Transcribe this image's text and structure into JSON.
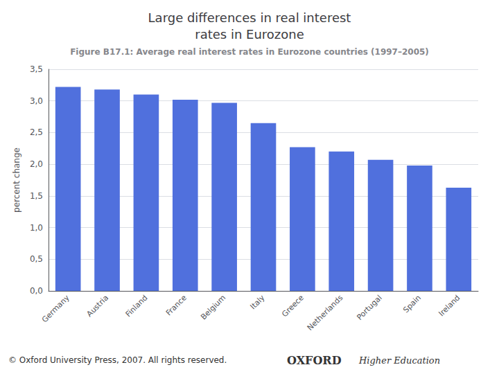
{
  "chart_data": {
    "type": "bar",
    "title": "Large differences in real interest\nrates in Eurozone",
    "subtitle": "Figure B17.1: Average real interest rates in Eurozone countries (1997–2005)",
    "ylabel": "percent change",
    "categories": [
      "Germany",
      "Austria",
      "Finland",
      "France",
      "Belgium",
      "Italy",
      "Greece",
      "Netherlands",
      "Portugal",
      "Spain",
      "Ireland"
    ],
    "values": [
      3.22,
      3.18,
      3.1,
      3.02,
      2.97,
      2.65,
      2.27,
      2.2,
      2.07,
      1.98,
      1.63
    ],
    "ylim": [
      0.0,
      3.5
    ],
    "yticks": [
      {
        "value": 0.0,
        "label": "0,0"
      },
      {
        "value": 0.5,
        "label": "0,5"
      },
      {
        "value": 1.0,
        "label": "1,0"
      },
      {
        "value": 1.5,
        "label": "1,5"
      },
      {
        "value": 2.0,
        "label": "2,0"
      },
      {
        "value": 2.5,
        "label": "2,5"
      },
      {
        "value": 3.0,
        "label": "3,0"
      },
      {
        "value": 3.5,
        "label": "3,5"
      }
    ],
    "grid": true,
    "annotations": [
      "© Oxford University Press, 2007. All rights reserved.",
      "OXFORD",
      "Higher Education"
    ]
  }
}
